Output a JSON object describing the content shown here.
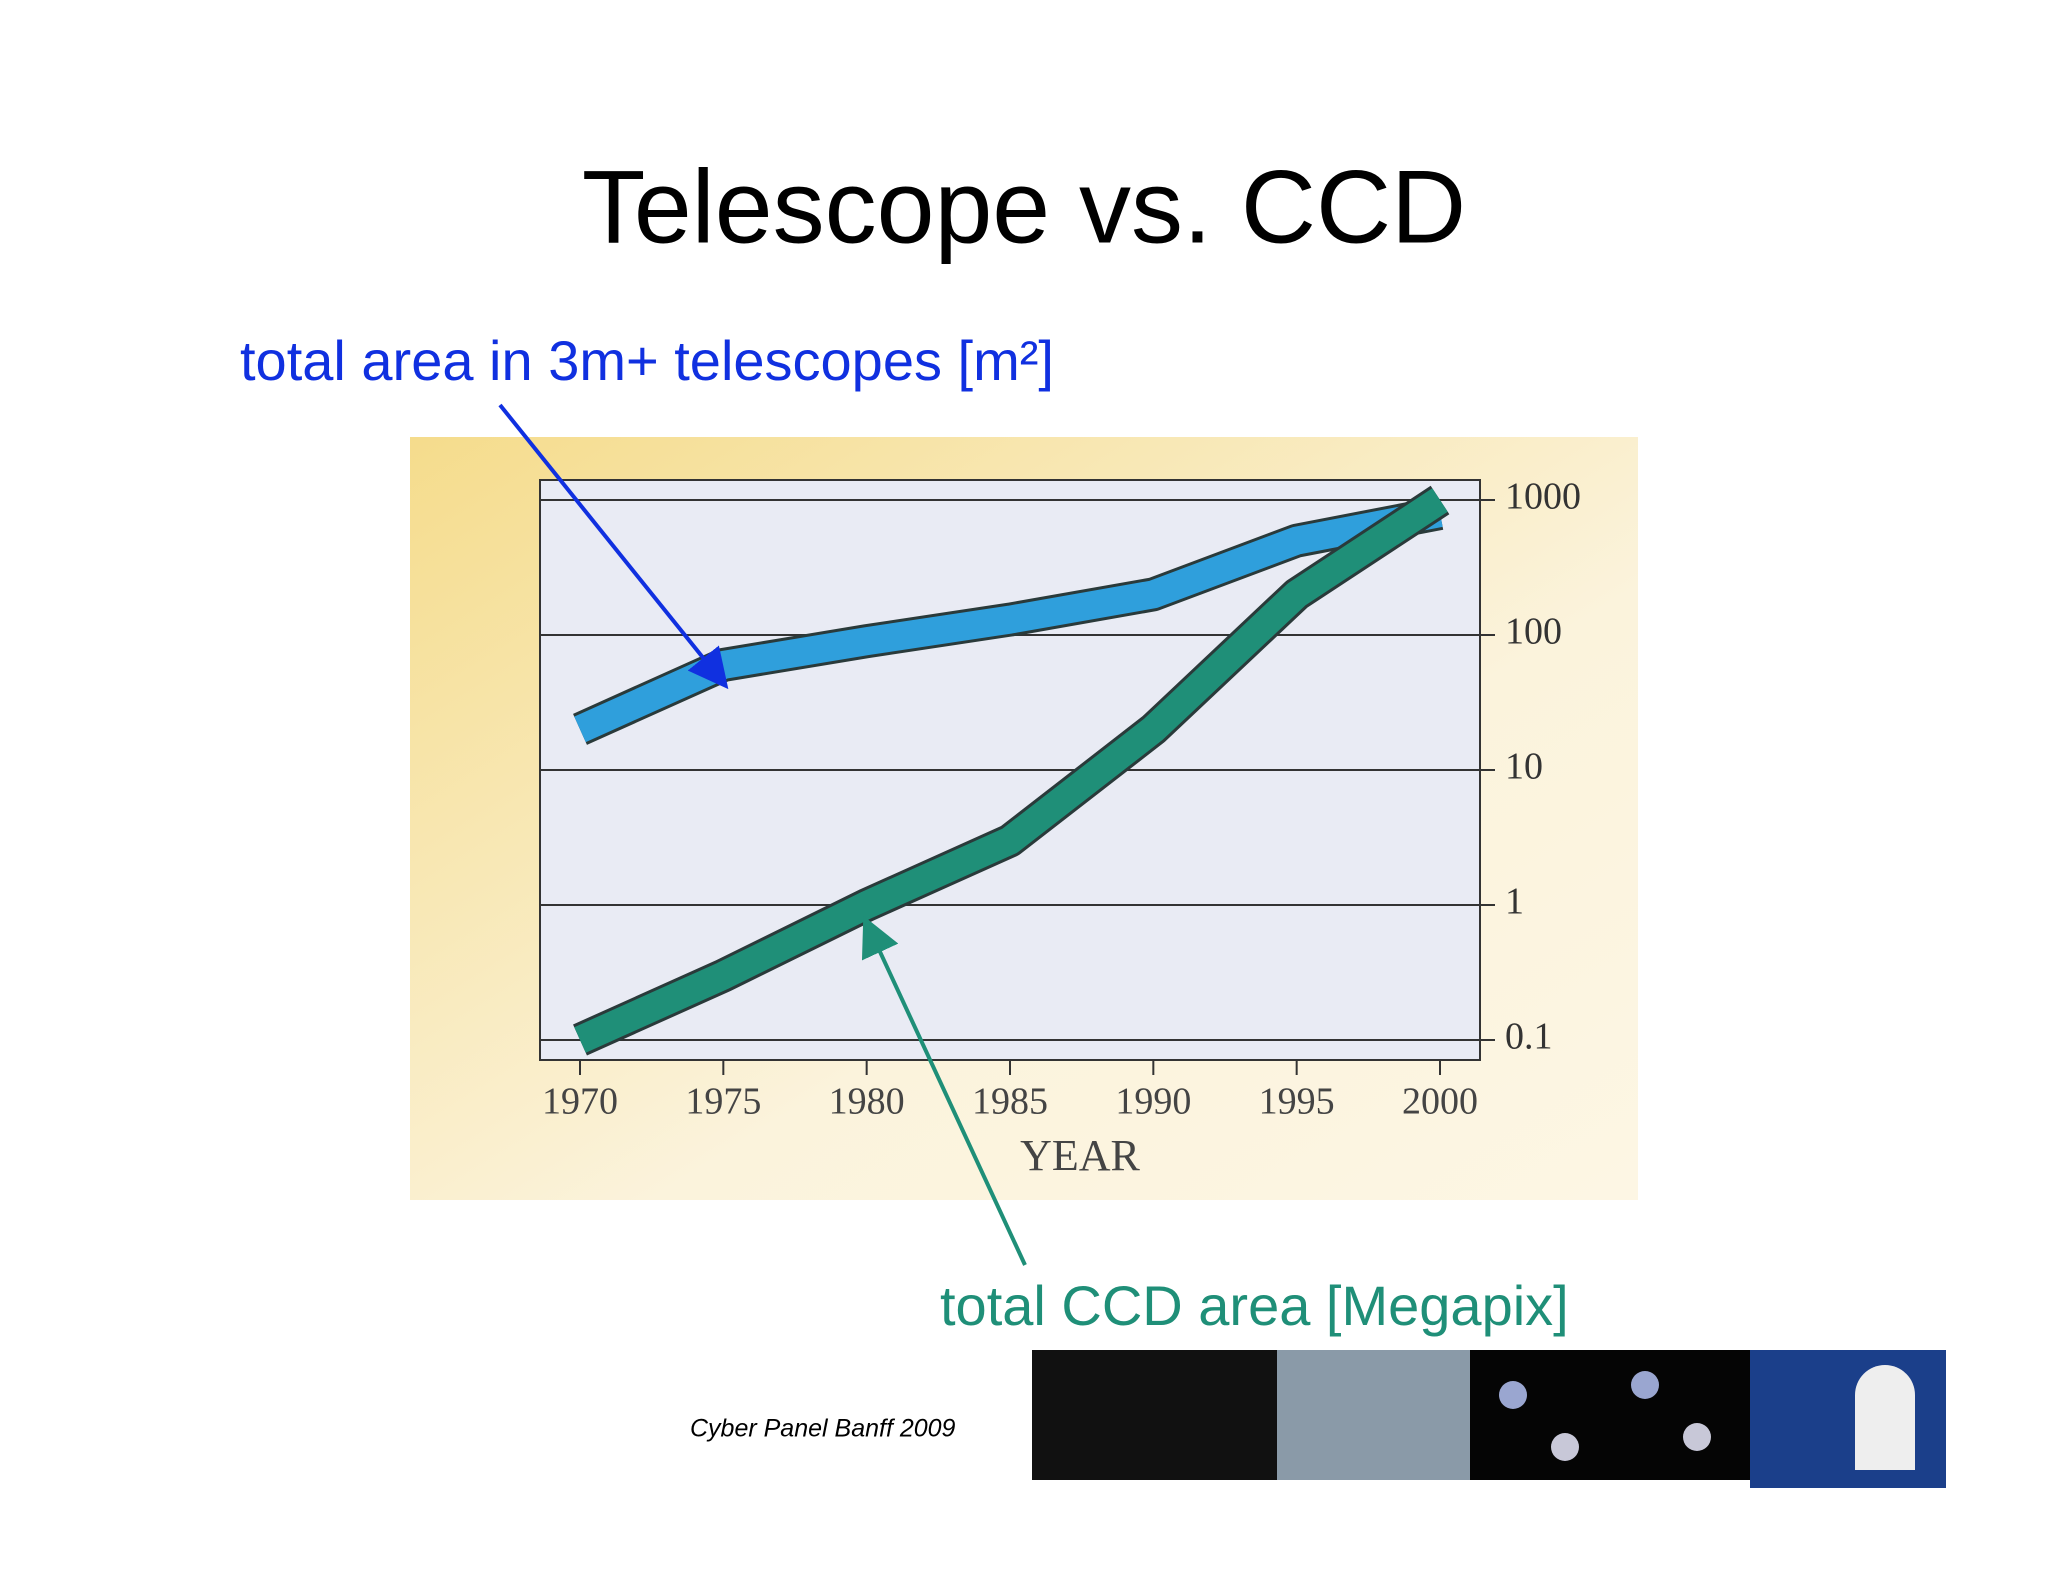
{
  "chart_data": {
    "type": "line",
    "title": "Telescope vs. CCD",
    "categories": [
      "1970",
      "1975",
      "1980",
      "1985",
      "1990",
      "1995",
      "2000"
    ],
    "x_label": "YEAR",
    "series": [
      {
        "name": "total area in 3m+ telescopes [m²]",
        "color": "#2f9fdc",
        "values": [
          20,
          60,
          90,
          130,
          200,
          500,
          800
        ]
      },
      {
        "name": "total CCD area [Megapix]",
        "color": "#1f8f78",
        "values": [
          0.1,
          0.3,
          1,
          3,
          20,
          200,
          1000
        ]
      }
    ],
    "log_scale": true,
    "ylim": [
      0.1,
      1000
    ],
    "yticks": [
      0.1,
      1,
      10,
      100,
      1000
    ],
    "grid": true,
    "footer": "Cyber Panel Banff 2009"
  }
}
